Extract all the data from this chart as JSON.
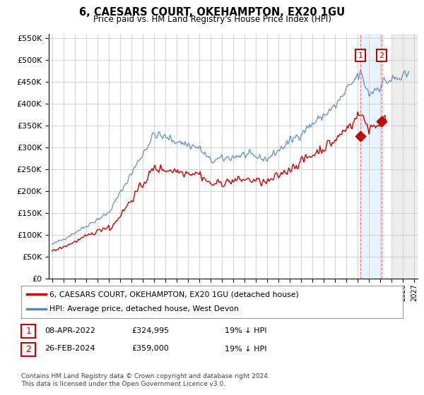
{
  "title": "6, CAESARS COURT, OKEHAMPTON, EX20 1GU",
  "subtitle": "Price paid vs. HM Land Registry's House Price Index (HPI)",
  "footnote": "Contains HM Land Registry data © Crown copyright and database right 2024.\nThis data is licensed under the Open Government Licence v3.0.",
  "legend_line1": "6, CAESARS COURT, OKEHAMPTON, EX20 1GU (detached house)",
  "legend_line2": "HPI: Average price, detached house, West Devon",
  "sale1_date": "08-APR-2022",
  "sale1_price": "£324,995",
  "sale1_hpi": "19% ↓ HPI",
  "sale2_date": "26-FEB-2024",
  "sale2_price": "£359,000",
  "sale2_hpi": "19% ↓ HPI",
  "sale1_year": 2022.25,
  "sale1_value": 324995,
  "sale2_year": 2024.12,
  "sale2_value": 359000,
  "hpi_color": "#5588bb",
  "price_color": "#cc0000",
  "grid_color": "#cccccc",
  "bg_color": "#ffffff",
  "ylim": [
    0,
    560000
  ],
  "xlim_start": 1994.7,
  "xlim_end": 2027.3
}
